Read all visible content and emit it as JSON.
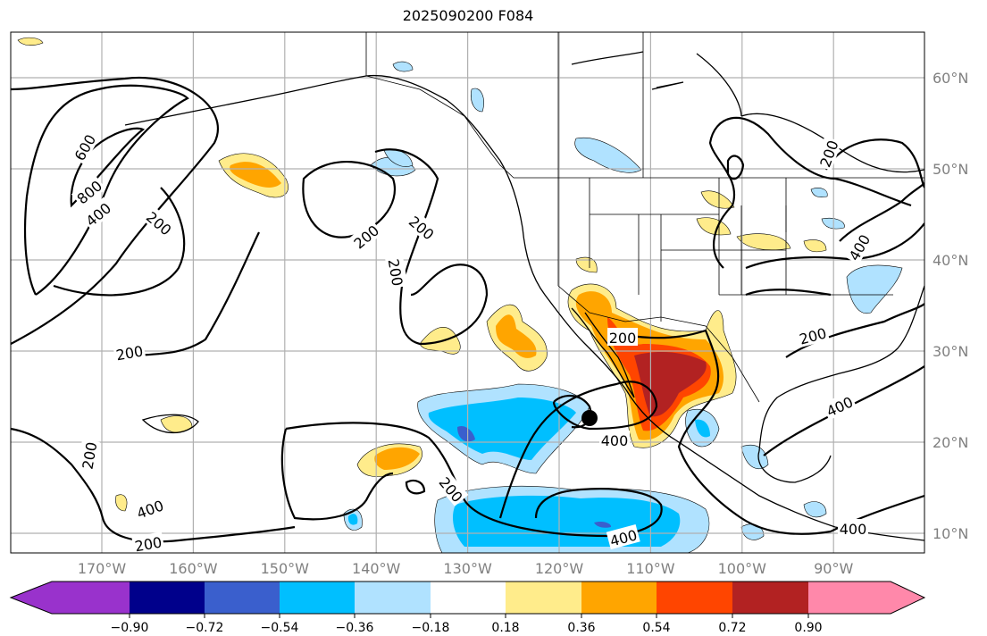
{
  "title": "2025090200 F084",
  "lon_labels": [
    "170°W",
    "160°W",
    "150°W",
    "140°W",
    "130°W",
    "120°W",
    "110°W",
    "100°W",
    "90°W"
  ],
  "lat_labels": [
    "60°N",
    "50°N",
    "40°N",
    "30°N",
    "20°N",
    "10°N"
  ],
  "colorbar": {
    "colors": [
      "#9932cc",
      "#00008b",
      "#3a5fcd",
      "#00bfff",
      "#b0e2ff",
      "#ffffff",
      "#ffec8b",
      "#ffa500",
      "#ff4500",
      "#b22222",
      "#ff88aa"
    ],
    "ticks": [
      "−0.90",
      "−0.72",
      "−0.54",
      "−0.36",
      "−0.18",
      "0.18",
      "0.36",
      "0.54",
      "0.72",
      "0.90"
    ]
  },
  "contour_labels": [
    "600",
    "800",
    "400",
    "200",
    "200",
    "200",
    "200",
    "200",
    "200",
    "400",
    "200",
    "200",
    "200",
    "400",
    "400",
    "200",
    "400",
    "400",
    "200",
    "400"
  ],
  "colors": {
    "grid": "#b0b0b0",
    "contour": "#000000"
  }
}
